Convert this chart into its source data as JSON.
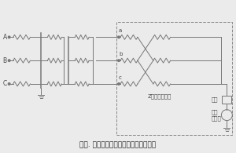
{
  "title": "图二. 变压器中性点接地电阻柜工作原理",
  "zigzag_label": "Z形接地变压器",
  "resistor_label": "电阻",
  "ct_label": "电流\n互感器",
  "phase_labels": [
    "A",
    "B",
    "C"
  ],
  "terminal_labels": [
    "a",
    "b",
    "c"
  ],
  "line_color": "#777777",
  "text_color": "#444444",
  "bg_color": "#ebebeb",
  "dashed_box_color": "#888888",
  "font_size": 5.5,
  "title_font_size": 6.5,
  "lw": 0.7
}
